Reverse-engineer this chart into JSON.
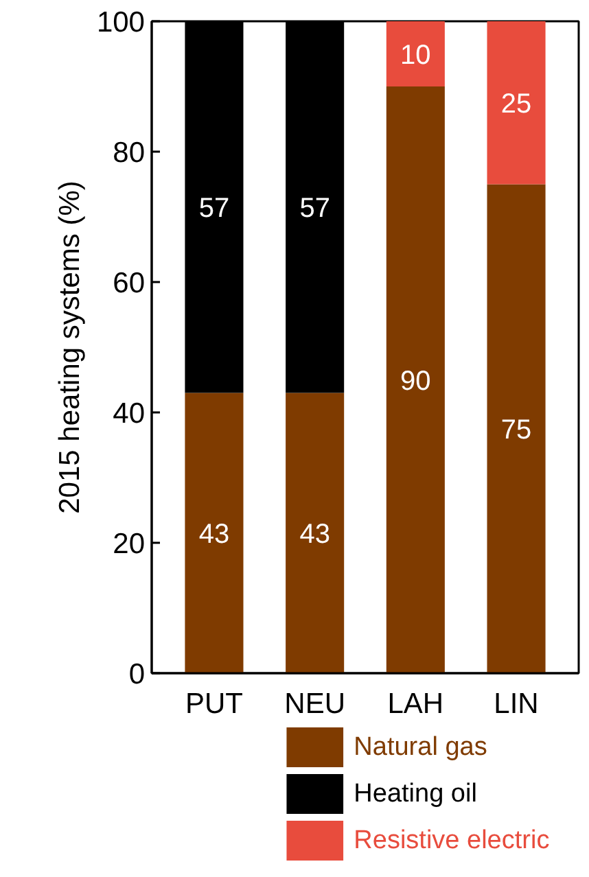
{
  "chart_data": {
    "type": "bar",
    "stacked": true,
    "ylabel": "2015 heating systems (%)",
    "categories": [
      "PUT",
      "NEU",
      "LAH",
      "LIN"
    ],
    "series": [
      {
        "name": "Natural gas",
        "color": "#7f3b00",
        "values": [
          43,
          43,
          90,
          75
        ]
      },
      {
        "name": "Heating oil",
        "color": "#000000",
        "values": [
          57,
          57,
          null,
          null
        ]
      },
      {
        "name": "Resistive electric",
        "color": "#e84c3d",
        "values": [
          null,
          null,
          10,
          25
        ]
      }
    ],
    "ylim": [
      0,
      100
    ],
    "yticks": [
      0,
      20,
      40,
      60,
      80,
      100
    ],
    "grid": false,
    "legend": "bottom",
    "data_labels": true
  }
}
